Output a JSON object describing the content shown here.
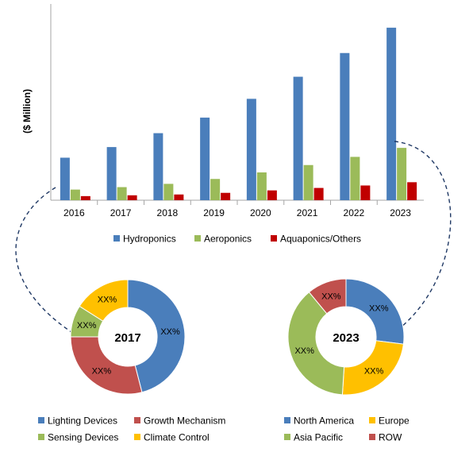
{
  "colors": {
    "hydroponics": "#4a7ebb",
    "aeroponics": "#9bbb59",
    "aquaponics": "#c00000",
    "lighting": "#4a7ebb",
    "growth": "#c0504d",
    "sensing": "#9bbb59",
    "climate": "#ffc000",
    "north_america": "#4a7ebb",
    "europe": "#ffc000",
    "asia_pacific": "#9bbb59",
    "row": "#c0504d",
    "connector": "#1f3864"
  },
  "chart_data": [
    {
      "type": "bar",
      "title": "",
      "xlabel": "",
      "ylabel": "($ Million)",
      "categories": [
        "2016",
        "2017",
        "2018",
        "2019",
        "2020",
        "2021",
        "2022",
        "2023"
      ],
      "series": [
        {
          "name": "Hydroponics",
          "values": [
            52,
            65,
            82,
            101,
            124,
            151,
            180,
            211
          ]
        },
        {
          "name": "Aeroponics",
          "values": [
            13,
            16,
            20,
            26,
            34,
            43,
            53,
            64
          ]
        },
        {
          "name": "Aquaponics/Others",
          "values": [
            5,
            6,
            7,
            9,
            12,
            15,
            18,
            22
          ]
        }
      ],
      "ylim": [
        0,
        240
      ],
      "legend_position": "bottom",
      "grid": false
    },
    {
      "type": "pie",
      "center_label": "2017",
      "slice_label": "XX%",
      "categories": [
        "Lighting Devices",
        "Growth Mechanism",
        "Sensing Devices",
        "Climate Control"
      ],
      "values": [
        46,
        29,
        9,
        16
      ],
      "legend_position": "bottom"
    },
    {
      "type": "pie",
      "center_label": "2023",
      "slice_label": "XX%",
      "categories": [
        "North America",
        "Europe",
        "Asia Pacific",
        "ROW"
      ],
      "values": [
        27,
        24,
        38,
        11
      ],
      "legend_position": "bottom"
    }
  ]
}
